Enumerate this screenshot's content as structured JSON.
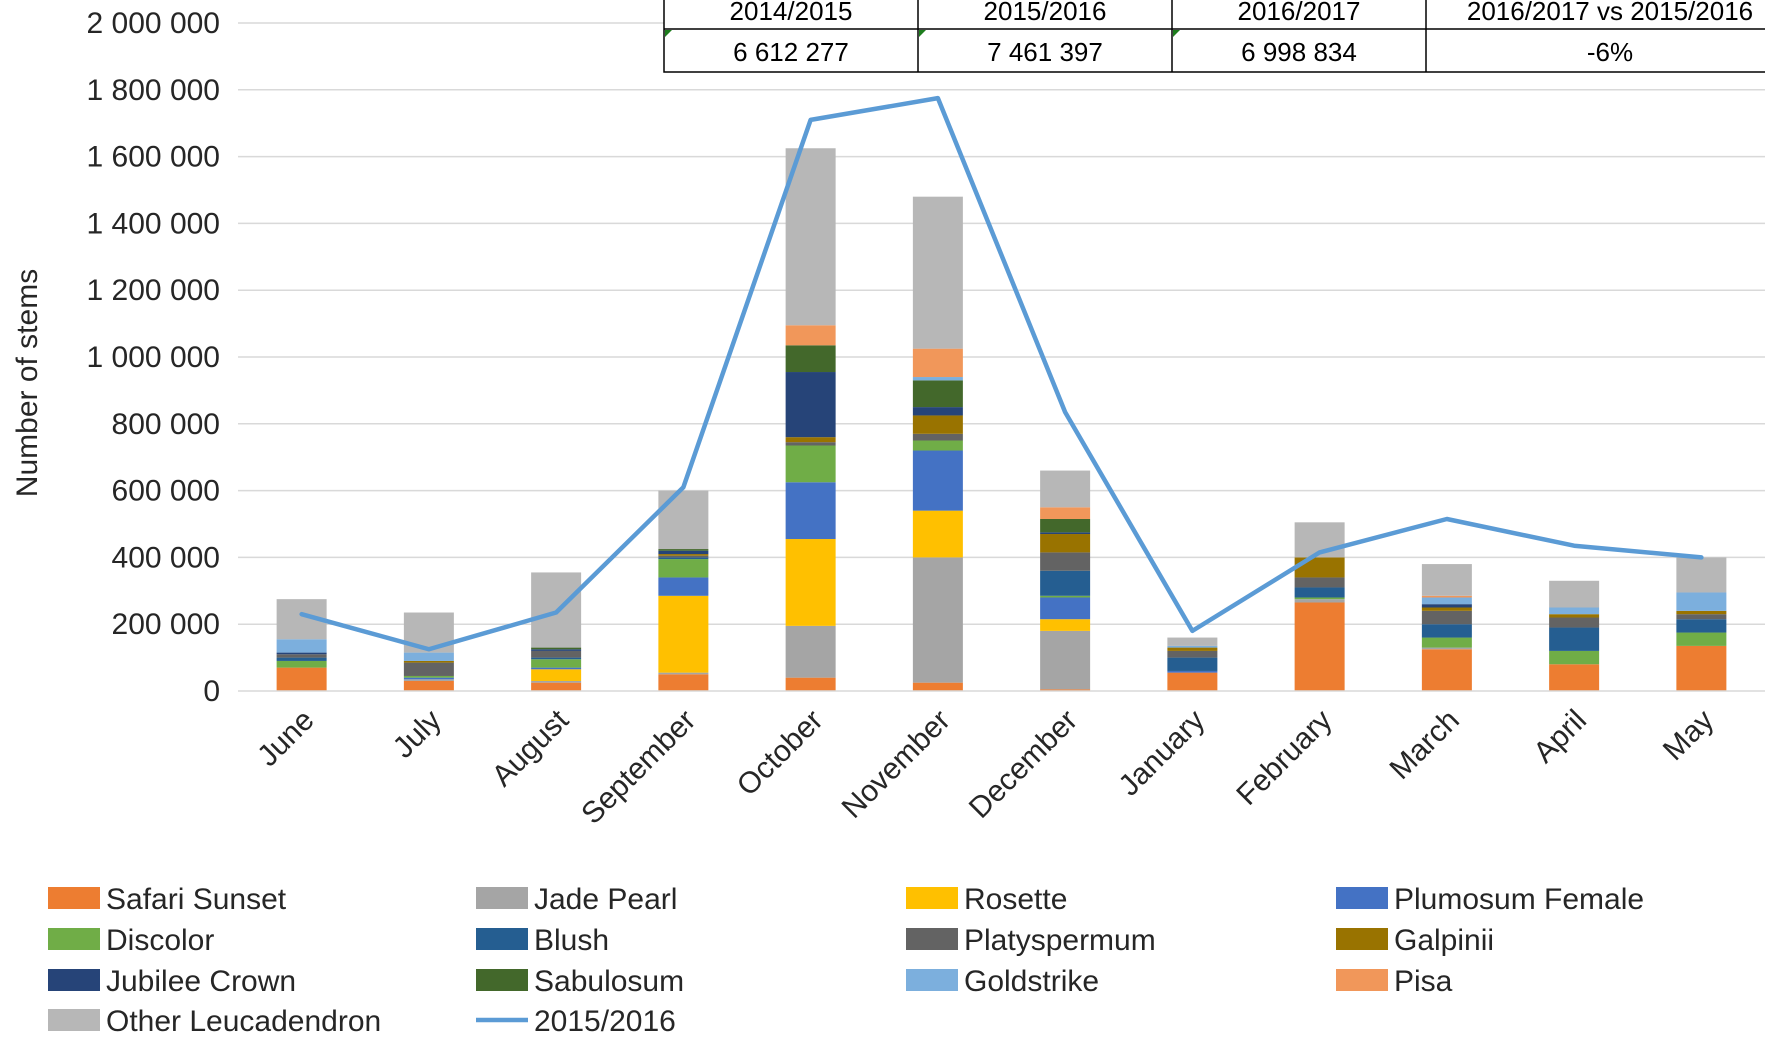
{
  "chart_data": {
    "type": "bar",
    "stacked": true,
    "ylabel": "Number of stems",
    "ylim": [
      0,
      2000000
    ],
    "ytick_step": 200000,
    "yticks": [
      "0",
      "200 000",
      "400 000",
      "600 000",
      "800 000",
      "1 000 000",
      "1 200 000",
      "1 400 000",
      "1 600 000",
      "1 800 000",
      "2 000 000"
    ],
    "grid": true,
    "legend_position": "bottom",
    "categories": [
      "June",
      "July",
      "August",
      "September",
      "October",
      "November",
      "December",
      "January",
      "February",
      "March",
      "April",
      "May"
    ],
    "series": [
      {
        "name": "Safari Sunset",
        "color": "#ED7D31",
        "values": [
          70000,
          30000,
          25000,
          50000,
          40000,
          25000,
          5000,
          55000,
          265000,
          125000,
          80000,
          135000
        ]
      },
      {
        "name": "Jade Pearl",
        "color": "#A5A5A5",
        "values": [
          0,
          5000,
          5000,
          5000,
          155000,
          375000,
          175000,
          0,
          10000,
          5000,
          0,
          0
        ]
      },
      {
        "name": "Rosette",
        "color": "#FFC000",
        "values": [
          0,
          0,
          35000,
          230000,
          260000,
          140000,
          35000,
          0,
          0,
          0,
          0,
          0
        ]
      },
      {
        "name": "Plumosum Female",
        "color": "#4472C4",
        "values": [
          0,
          5000,
          5000,
          55000,
          170000,
          180000,
          65000,
          5000,
          0,
          0,
          0,
          0
        ]
      },
      {
        "name": "Discolor",
        "color": "#70AD47",
        "values": [
          20000,
          5000,
          25000,
          55000,
          110000,
          30000,
          5000,
          0,
          5000,
          30000,
          40000,
          40000
        ]
      },
      {
        "name": "Blush",
        "color": "#255E91",
        "values": [
          10000,
          0,
          5000,
          5000,
          0,
          0,
          75000,
          40000,
          30000,
          40000,
          70000,
          40000
        ]
      },
      {
        "name": "Platyspermum",
        "color": "#636363",
        "values": [
          10000,
          40000,
          20000,
          5000,
          10000,
          20000,
          55000,
          20000,
          30000,
          40000,
          30000,
          15000
        ]
      },
      {
        "name": "Galpinii",
        "color": "#997300",
        "values": [
          0,
          5000,
          0,
          5000,
          15000,
          55000,
          55000,
          10000,
          60000,
          10000,
          10000,
          10000
        ]
      },
      {
        "name": "Jubilee Crown",
        "color": "#264478",
        "values": [
          5000,
          0,
          5000,
          10000,
          195000,
          25000,
          5000,
          0,
          0,
          10000,
          0,
          0
        ]
      },
      {
        "name": "Sabulosum",
        "color": "#43682B",
        "values": [
          0,
          0,
          5000,
          5000,
          80000,
          80000,
          40000,
          0,
          0,
          0,
          0,
          0
        ]
      },
      {
        "name": "Goldstrike",
        "color": "#7CAFDD",
        "values": [
          40000,
          25000,
          0,
          0,
          0,
          10000,
          0,
          5000,
          0,
          20000,
          20000,
          55000
        ]
      },
      {
        "name": "Pisa",
        "color": "#F1975A",
        "values": [
          0,
          0,
          0,
          0,
          60000,
          85000,
          35000,
          0,
          0,
          5000,
          0,
          0
        ]
      },
      {
        "name": "Other Leucadendron",
        "color": "#B7B7B7",
        "values": [
          120000,
          120000,
          225000,
          175000,
          530000,
          455000,
          110000,
          25000,
          105000,
          95000,
          80000,
          105000
        ]
      }
    ],
    "line_series": {
      "name": "2015/2016",
      "color": "#5B9BD5",
      "values": [
        230000,
        125000,
        235000,
        610000,
        1710000,
        1775000,
        835000,
        180000,
        415000,
        515000,
        435000,
        400000
      ]
    }
  },
  "summary_table": {
    "headers": [
      "2014/2015",
      "2015/2016",
      "2016/2017",
      "2016/2017 vs 2015/2016"
    ],
    "values": [
      "6 612 277",
      "7 461 397",
      "6 998 834",
      "-6%"
    ]
  }
}
